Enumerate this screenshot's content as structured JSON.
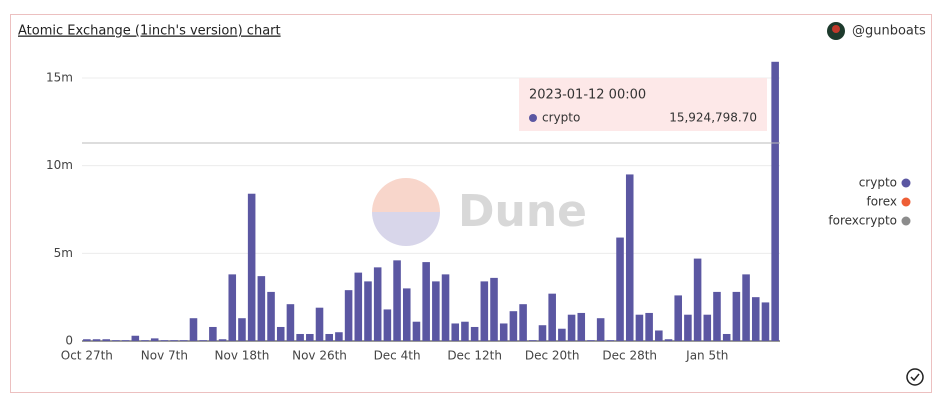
{
  "chart_data": {
    "type": "bar",
    "title": "Atomic Exchange (1inch's version) chart",
    "author": "@gunboats",
    "watermark": "Dune",
    "categories": [
      "Oct 27th",
      null,
      null,
      null,
      null,
      null,
      null,
      null,
      "Nov 7th",
      null,
      null,
      null,
      null,
      null,
      null,
      null,
      "Nov 18th",
      null,
      null,
      null,
      null,
      null,
      null,
      null,
      "Nov 26th",
      null,
      null,
      null,
      null,
      null,
      null,
      null,
      "Dec 4th",
      null,
      null,
      null,
      null,
      null,
      null,
      null,
      "Dec 12th",
      null,
      null,
      null,
      null,
      null,
      null,
      null,
      "Dec 20th",
      null,
      null,
      null,
      null,
      null,
      null,
      null,
      "Dec 28th",
      null,
      null,
      null,
      null,
      null,
      null,
      null,
      "Jan 5th",
      null,
      null,
      null,
      null,
      null,
      null,
      null
    ],
    "series": [
      {
        "name": "crypto",
        "color": "#5b57a2",
        "values": [
          100000,
          100000,
          100000,
          50000,
          50000,
          300000,
          50000,
          150000,
          50000,
          50000,
          50000,
          1300000,
          50000,
          800000,
          100000,
          3800000,
          1300000,
          8400000,
          3700000,
          2800000,
          800000,
          2100000,
          400000,
          400000,
          1900000,
          400000,
          500000,
          2900000,
          3900000,
          3400000,
          4200000,
          1800000,
          4600000,
          3000000,
          1100000,
          4500000,
          3400000,
          3800000,
          1000000,
          1100000,
          800000,
          3400000,
          3600000,
          1000000,
          1700000,
          2100000,
          50000,
          900000,
          2700000,
          700000,
          1500000,
          1600000,
          50000,
          1300000,
          50000,
          5900000,
          9500000,
          1500000,
          1600000,
          600000,
          100000,
          2600000,
          1500000,
          4700000,
          1500000,
          2800000,
          400000,
          2800000,
          3800000,
          2500000,
          2200000,
          15924798.7
        ]
      },
      {
        "name": "forex",
        "color": "#ee5e36"
      },
      {
        "name": "forexcrypto",
        "color": "#8c8c8c"
      }
    ],
    "tooltip": {
      "date": "2023-01-12 00:00",
      "series": "crypto",
      "value_label": "15,924,798.70"
    },
    "ylim": [
      0,
      16000000
    ],
    "yticks": [
      0,
      {
        "value": 5000000,
        "label": "5m"
      },
      {
        "value": 10000000,
        "label": "10m"
      },
      {
        "value": 15000000,
        "label": "15m"
      }
    ],
    "grid": true
  }
}
